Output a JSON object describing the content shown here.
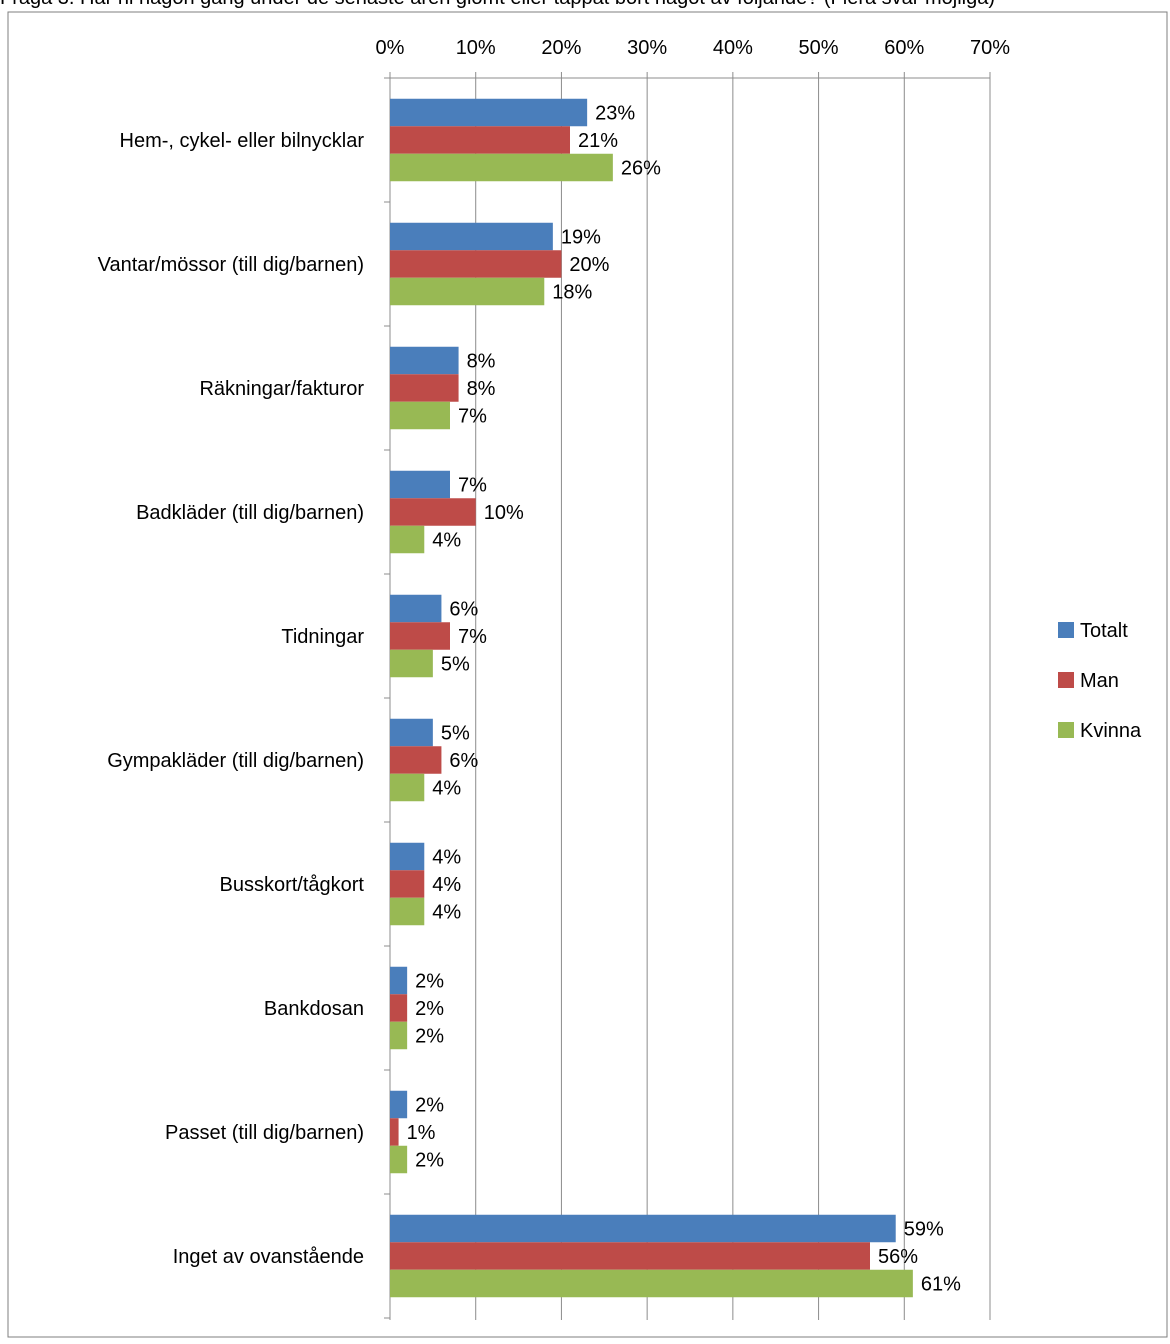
{
  "header": {
    "caption": "Fråga 3. Har ni någon gång under de senaste åren glömt eller tappat bort något av följande? (Flera svar möjliga)"
  },
  "colors": {
    "Totalt": "#4a7ebb",
    "Man": "#be4b48",
    "Kvinna": "#98b954",
    "gridline": "#8c8c8c",
    "frame": "#7f7f7f"
  },
  "chart_data": {
    "type": "bar",
    "orientation": "horizontal",
    "title": "",
    "xlabel": "",
    "ylabel": "",
    "xlim": [
      0,
      70
    ],
    "x_ticks": [
      "0%",
      "10%",
      "20%",
      "30%",
      "40%",
      "50%",
      "60%",
      "70%"
    ],
    "x_axis_position": "top",
    "grid": true,
    "legend_position": "right",
    "categories": [
      "Hem-, cykel- eller bilnycklar",
      "Vantar/mössor (till dig/barnen)",
      "Räkningar/fakturor",
      "Badkläder (till dig/barnen)",
      "Tidningar",
      "Gympakläder (till dig/barnen)",
      "Busskort/tågkort",
      "Bankdosan",
      "Passet (till dig/barnen)",
      "Inget av ovanstående"
    ],
    "series": [
      {
        "name": "Totalt",
        "values": [
          23,
          19,
          8,
          7,
          6,
          5,
          4,
          2,
          2,
          59
        ],
        "labels": [
          "23%",
          "19%",
          "8%",
          "7%",
          "6%",
          "5%",
          "4%",
          "2%",
          "2%",
          "59%"
        ]
      },
      {
        "name": "Man",
        "values": [
          21,
          20,
          8,
          10,
          7,
          6,
          4,
          2,
          1,
          56
        ],
        "labels": [
          "21%",
          "20%",
          "8%",
          "10%",
          "7%",
          "6%",
          "4%",
          "2%",
          "1%",
          "56%"
        ]
      },
      {
        "name": "Kvinna",
        "values": [
          26,
          18,
          7,
          4,
          5,
          4,
          4,
          2,
          2,
          61
        ],
        "labels": [
          "26%",
          "18%",
          "7%",
          "4%",
          "5%",
          "4%",
          "4%",
          "2%",
          "2%",
          "61%"
        ]
      }
    ]
  }
}
